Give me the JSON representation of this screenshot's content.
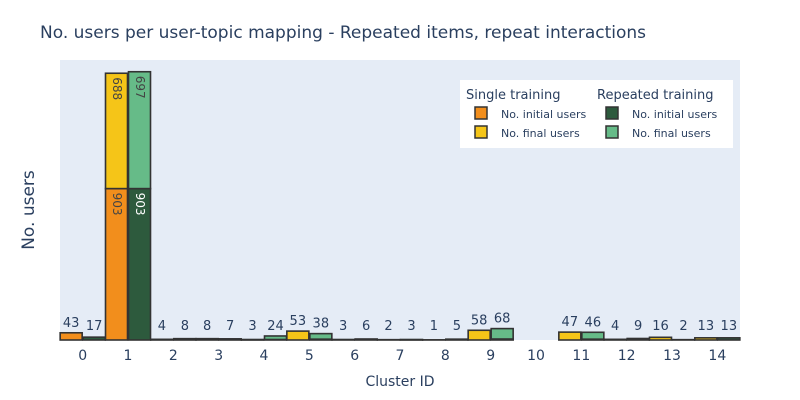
{
  "chart_data": {
    "type": "bar",
    "title": "No. users per user-topic mapping - Repeated items, repeat interactions",
    "xlabel": "Cluster ID",
    "ylabel": "No. users",
    "categories": [
      "0",
      "1",
      "2",
      "3",
      "4",
      "5",
      "6",
      "7",
      "8",
      "9",
      "10",
      "11",
      "12",
      "13",
      "14"
    ],
    "ylim": [
      0,
      1670
    ],
    "grid": false,
    "legend_position": "top-right",
    "legend_groups": [
      {
        "title": "Single training",
        "items": [
          {
            "name": "No. initial users",
            "color": "#f28e1c"
          },
          {
            "name": "No. final users",
            "color": "#f5c518"
          }
        ]
      },
      {
        "title": "Repeated training",
        "items": [
          {
            "name": "No. initial users",
            "color": "#2d5a3d"
          },
          {
            "name": "No. final users",
            "color": "#66bb88"
          }
        ]
      }
    ],
    "stacks": [
      {
        "group": "Single training",
        "series": [
          {
            "name": "No. initial users",
            "color": "#f28e1c",
            "values": [
              43,
              903,
              2,
              5,
              1,
              0,
              0,
              0,
              0,
              0,
              0,
              0,
              0,
              0,
              0
            ]
          },
          {
            "name": "No. final users",
            "color": "#f5c518",
            "values": [
              0,
              688,
              2,
              3,
              2,
              53,
              3,
              2,
              1,
              58,
              0,
              47,
              4,
              16,
              13
            ]
          }
        ],
        "totals": [
          43,
          1591,
          4,
          8,
          3,
          53,
          3,
          2,
          1,
          58,
          null,
          47,
          4,
          16,
          13
        ]
      },
      {
        "group": "Repeated training",
        "series": [
          {
            "name": "No. initial users",
            "color": "#2d5a3d",
            "values": [
              17,
              903,
              4,
              4,
              3,
              5,
              3,
              1,
              2,
              6,
              0,
              5,
              3,
              2,
              13
            ]
          },
          {
            "name": "No. final users",
            "color": "#66bb88",
            "values": [
              0,
              697,
              4,
              3,
              21,
              33,
              3,
              2,
              3,
              62,
              0,
              41,
              6,
              0,
              0
            ]
          }
        ],
        "totals": [
          17,
          1600,
          8,
          7,
          24,
          38,
          6,
          3,
          5,
          68,
          null,
          46,
          9,
          2,
          13
        ]
      }
    ]
  }
}
